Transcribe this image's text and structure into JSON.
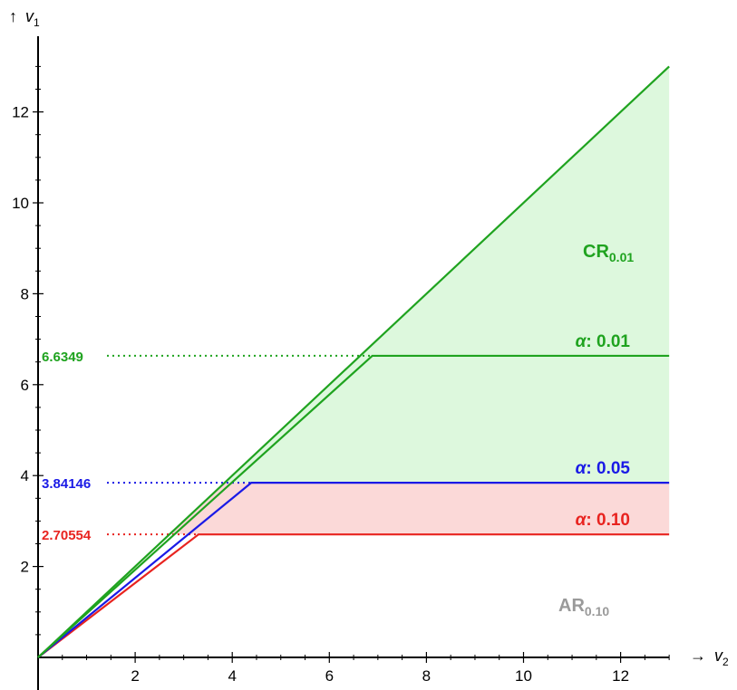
{
  "chart_data": {
    "type": "line",
    "xlabel_arrow": "→",
    "xlabel_var": "v",
    "xlabel_sub": "2",
    "ylabel_arrow": "↑",
    "ylabel_var": "v",
    "ylabel_sub": "1",
    "xlim": [
      0,
      13
    ],
    "ylim": [
      0,
      13
    ],
    "x_ticks": [
      2,
      4,
      6,
      8,
      10,
      12
    ],
    "y_ticks": [
      2,
      4,
      6,
      8,
      10,
      12
    ],
    "diagonal_end": 13,
    "thresholds": [
      {
        "alpha_prefix": "α",
        "alpha_value": ": 0.10",
        "critical_value": 2.70554,
        "label": "2.70554",
        "color": "#e8231f",
        "fill": "#fbd9d8"
      },
      {
        "alpha_prefix": "α",
        "alpha_value": ": 0.05",
        "critical_value": 3.84146,
        "label": "3.84146",
        "color": "#1a1ae6",
        "fill": "#dcebfa"
      },
      {
        "alpha_prefix": "α",
        "alpha_value": ": 0.01",
        "critical_value": 6.6349,
        "label": "6.6349",
        "color": "#1fa31f",
        "fill": "#ddf8dd"
      }
    ],
    "regions": {
      "cr": {
        "main": "CR",
        "sub": "0.01",
        "color": "#1fa31f"
      },
      "ar": {
        "main": "AR",
        "sub": "0.10",
        "color": "#9a9a9a"
      }
    }
  }
}
